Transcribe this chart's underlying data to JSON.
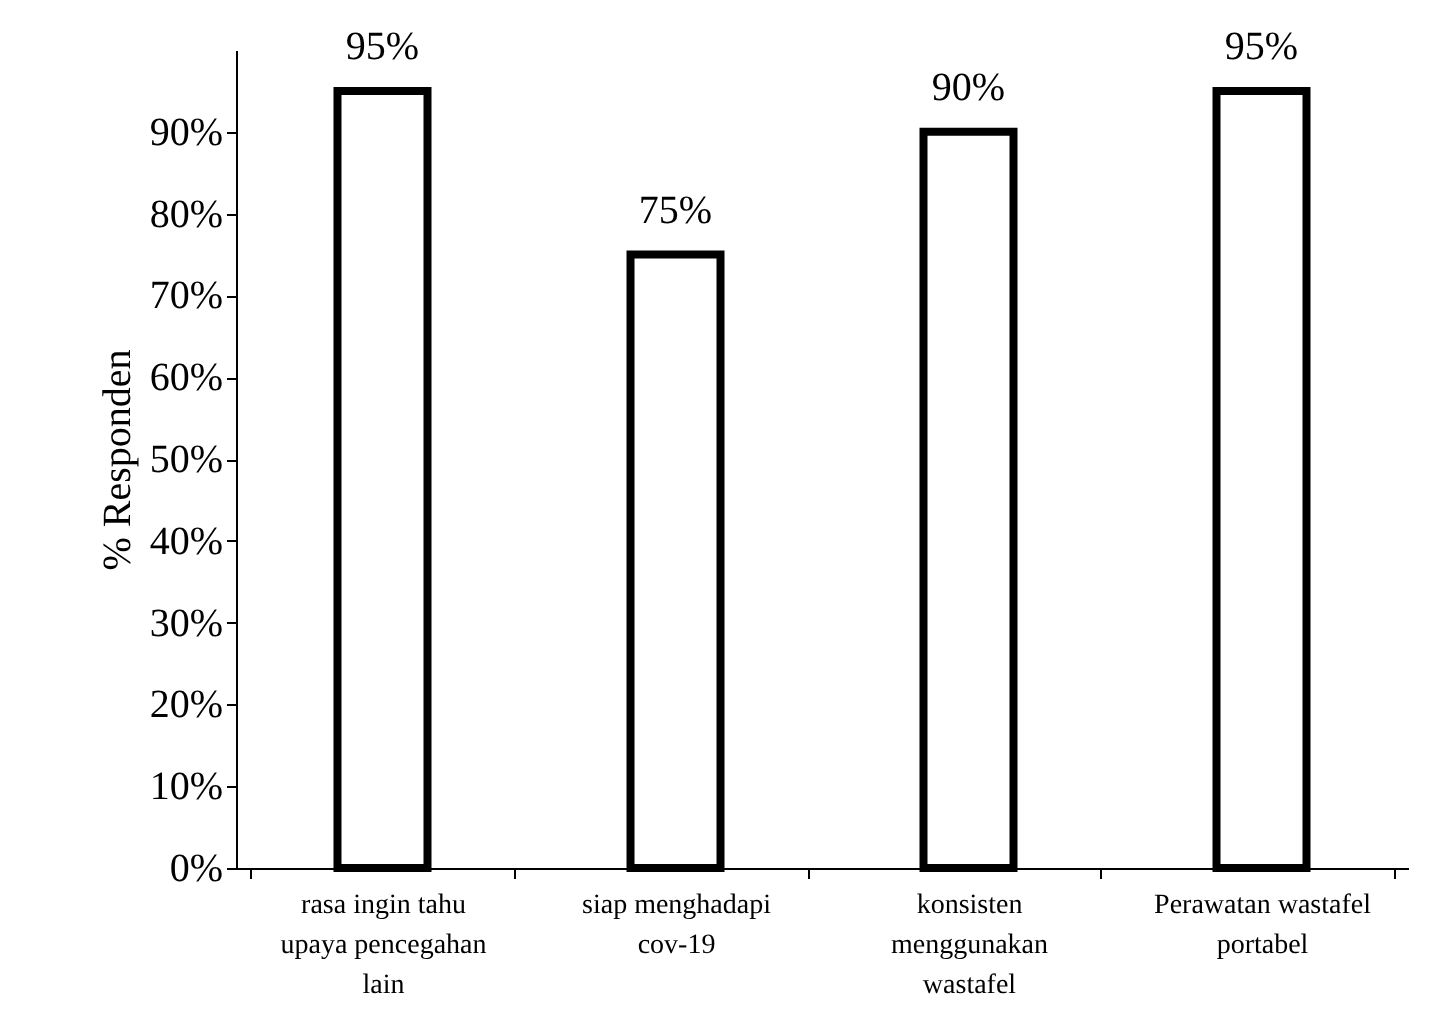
{
  "chart_data": {
    "type": "bar",
    "ylabel": "% Responden",
    "categories": [
      "rasa ingin tahu upaya pencegahan lain",
      "siap menghadapi cov-19",
      "konsisten menggunakan wastafel",
      "Perawatan wastafel portabel"
    ],
    "values": [
      95,
      75,
      90,
      95
    ],
    "color": "#ffffff",
    "value_labels": [
      "95%",
      "75%",
      "90%",
      "95%"
    ],
    "ylim": [
      0,
      100
    ],
    "yticks": [
      {
        "value": 0,
        "label": "0%"
      },
      {
        "value": 10,
        "label": "10%"
      },
      {
        "value": 20,
        "label": "20%"
      },
      {
        "value": 30,
        "label": "30%"
      },
      {
        "value": 40,
        "label": "40%"
      },
      {
        "value": 50,
        "label": "50%"
      },
      {
        "value": 60,
        "label": "60%"
      },
      {
        "value": 70,
        "label": "70%"
      },
      {
        "value": 80,
        "label": "80%"
      },
      {
        "value": 90,
        "label": "90%"
      }
    ],
    "grid": false
  }
}
